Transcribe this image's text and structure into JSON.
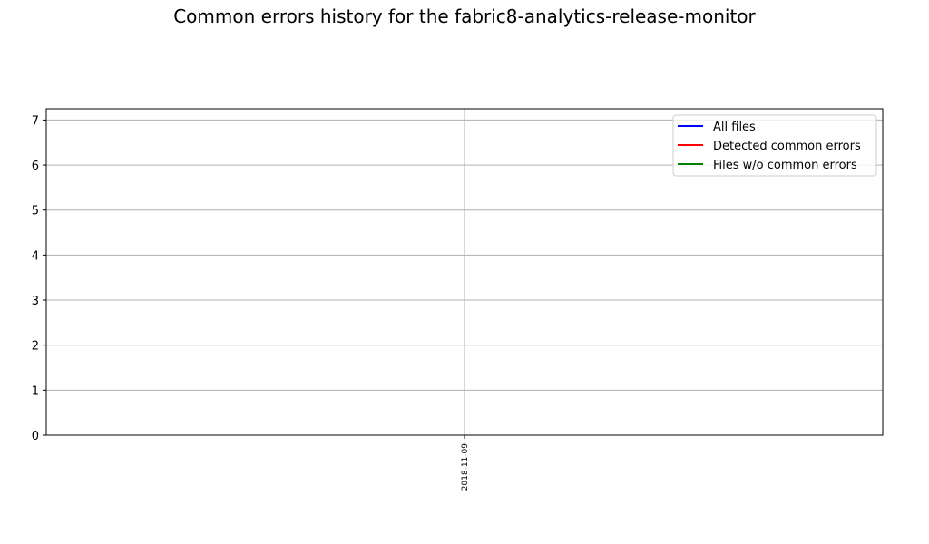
{
  "chart_data": {
    "type": "line",
    "title": "Common errors history for the fabric8-analytics-release-monitor",
    "xlabel": "",
    "ylabel": "",
    "x": [
      "2018-11-09"
    ],
    "series": [
      {
        "name": "All files",
        "color": "#0000ff",
        "values": [
          0
        ]
      },
      {
        "name": "Detected common errors",
        "color": "#ff0000",
        "values": [
          0
        ]
      },
      {
        "name": "Files w/o common errors",
        "color": "#008000",
        "values": [
          0
        ]
      }
    ],
    "ylim": [
      0,
      7.25
    ],
    "yticks": [
      "0",
      "1",
      "2",
      "3",
      "4",
      "5",
      "6",
      "7"
    ],
    "xticks": [
      "2018-11-09"
    ],
    "grid": true,
    "legend_position": "top-right"
  }
}
